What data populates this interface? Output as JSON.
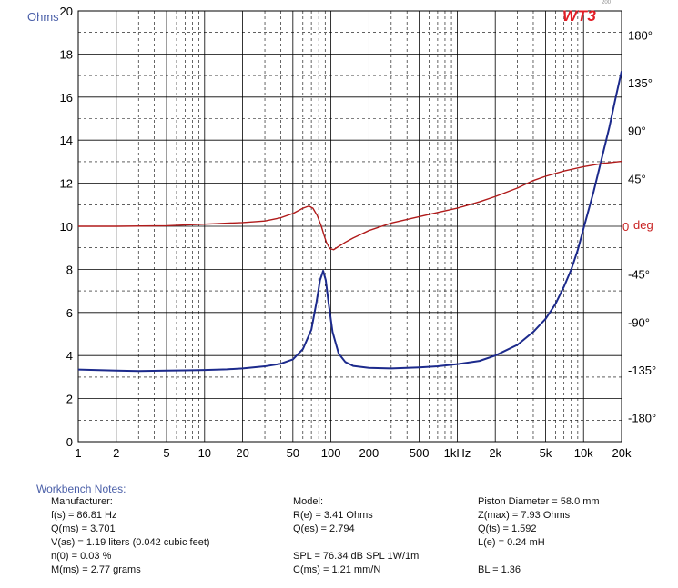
{
  "logo": {
    "text": "WT3",
    "superscript": "200"
  },
  "chart_data": {
    "type": "line",
    "x_scale": "log",
    "xlim": [
      1,
      20000
    ],
    "x_ticks": [
      {
        "v": 1,
        "label": "1"
      },
      {
        "v": 2,
        "label": "2"
      },
      {
        "v": 5,
        "label": "5"
      },
      {
        "v": 10,
        "label": "10"
      },
      {
        "v": 20,
        "label": "20"
      },
      {
        "v": 50,
        "label": "50"
      },
      {
        "v": 100,
        "label": "100"
      },
      {
        "v": 200,
        "label": "200"
      },
      {
        "v": 500,
        "label": "500"
      },
      {
        "v": 1000,
        "label": "1kHz"
      },
      {
        "v": 2000,
        "label": "2k"
      },
      {
        "v": 5000,
        "label": "5k"
      },
      {
        "v": 10000,
        "label": "10k"
      },
      {
        "v": 20000,
        "label": "20k"
      }
    ],
    "left_axis": {
      "label": "Ohms",
      "ylim": [
        0,
        20
      ],
      "major_step": 2,
      "minor_step": 1,
      "tick_labels": [
        "0",
        "2",
        "4",
        "6",
        "8",
        "10",
        "12",
        "14",
        "16",
        "18",
        "20"
      ]
    },
    "right_axis": {
      "label": "deg",
      "ylim": [
        -202.5,
        202.5
      ],
      "ticks": [
        {
          "v": -180,
          "label": "-180°"
        },
        {
          "v": -135,
          "label": "-135°"
        },
        {
          "v": -90,
          "label": "-90°"
        },
        {
          "v": -45,
          "label": "-45°"
        },
        {
          "v": 0,
          "label": "0"
        },
        {
          "v": 45,
          "label": "45°"
        },
        {
          "v": 90,
          "label": "90°"
        },
        {
          "v": 135,
          "label": "135°"
        },
        {
          "v": 180,
          "label": "180°"
        }
      ]
    },
    "series": [
      {
        "axis": "left",
        "color": "#1c2a8c",
        "points": [
          [
            1,
            3.35
          ],
          [
            2,
            3.3
          ],
          [
            3,
            3.28
          ],
          [
            5,
            3.3
          ],
          [
            7,
            3.31
          ],
          [
            10,
            3.33
          ],
          [
            15,
            3.36
          ],
          [
            20,
            3.4
          ],
          [
            30,
            3.5
          ],
          [
            40,
            3.62
          ],
          [
            50,
            3.82
          ],
          [
            60,
            4.3
          ],
          [
            70,
            5.2
          ],
          [
            77,
            6.5
          ],
          [
            82,
            7.5
          ],
          [
            86.81,
            7.93
          ],
          [
            91,
            7.5
          ],
          [
            96,
            6.4
          ],
          [
            103,
            5.1
          ],
          [
            115,
            4.1
          ],
          [
            130,
            3.7
          ],
          [
            150,
            3.52
          ],
          [
            200,
            3.43
          ],
          [
            300,
            3.4
          ],
          [
            500,
            3.45
          ],
          [
            700,
            3.5
          ],
          [
            1000,
            3.6
          ],
          [
            1500,
            3.75
          ],
          [
            2000,
            4.0
          ],
          [
            3000,
            4.5
          ],
          [
            4000,
            5.1
          ],
          [
            5000,
            5.7
          ],
          [
            6000,
            6.4
          ],
          [
            7000,
            7.2
          ],
          [
            8000,
            8.0
          ],
          [
            9000,
            8.9
          ],
          [
            10000,
            9.9
          ],
          [
            12000,
            11.6
          ],
          [
            14000,
            13.2
          ],
          [
            16000,
            14.6
          ],
          [
            18000,
            16.0
          ],
          [
            20000,
            17.2
          ]
        ]
      },
      {
        "axis": "right",
        "color": "#b01a1a",
        "points": [
          [
            1,
            0
          ],
          [
            2,
            0
          ],
          [
            5,
            0.5
          ],
          [
            10,
            2
          ],
          [
            20,
            3.5
          ],
          [
            30,
            5
          ],
          [
            40,
            8
          ],
          [
            50,
            12
          ],
          [
            60,
            17
          ],
          [
            67,
            19
          ],
          [
            72,
            17
          ],
          [
            78,
            10
          ],
          [
            84,
            0
          ],
          [
            88,
            -8
          ],
          [
            92,
            -15
          ],
          [
            98,
            -21
          ],
          [
            105,
            -22
          ],
          [
            115,
            -19
          ],
          [
            130,
            -15
          ],
          [
            150,
            -11
          ],
          [
            200,
            -4
          ],
          [
            300,
            3
          ],
          [
            500,
            9
          ],
          [
            700,
            13
          ],
          [
            1000,
            17
          ],
          [
            1500,
            23
          ],
          [
            2000,
            28
          ],
          [
            3000,
            36
          ],
          [
            4000,
            43
          ],
          [
            5000,
            47
          ],
          [
            7000,
            52
          ],
          [
            10000,
            56
          ],
          [
            14000,
            59
          ],
          [
            20000,
            61
          ]
        ]
      }
    ]
  },
  "notes": {
    "title": "Workbench Notes:",
    "manufacturer": "Manufacturer:",
    "fs": "f(s) = 86.81 Hz",
    "qms": "Q(ms) = 3.701",
    "vas": "V(as) = 1.19 liters  (0.042 cubic feet)",
    "n0": "n(0) = 0.03 %",
    "mms": "M(ms) = 2.77 grams",
    "model": "Model:",
    "re": "R(e) = 3.41 Ohms",
    "qes": "Q(es) = 2.794",
    "spl": "SPL = 76.34 dB SPL 1W/1m",
    "cms": "C(ms) = 1.21 mm/N",
    "piston": "Piston Diameter = 58.0 mm",
    "zmax": "Z(max) = 7.93 Ohms",
    "qts": "Q(ts) = 1.592",
    "le": "L(e) = 0.24 mH",
    "bl": "BL = 1.36"
  }
}
